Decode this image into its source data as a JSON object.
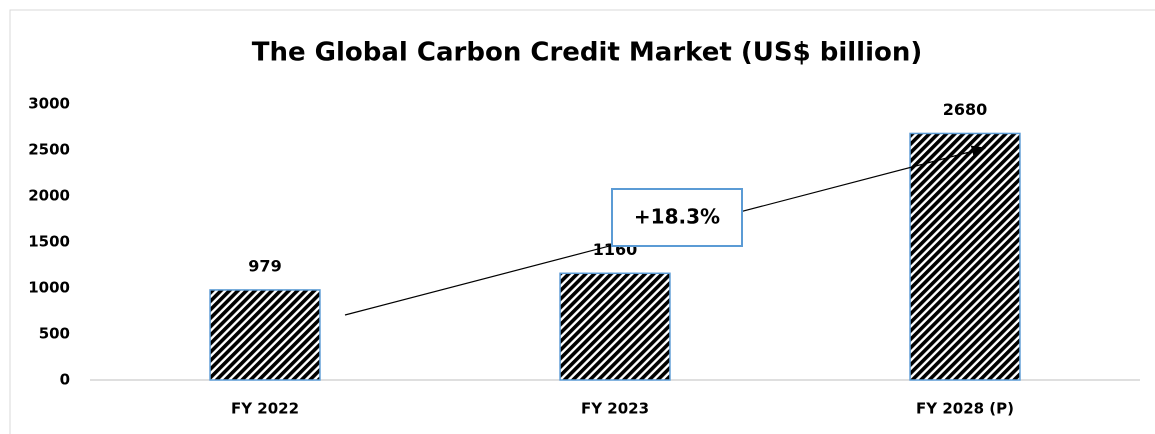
{
  "chart_data": {
    "type": "bar",
    "title": "The Global Carbon Credit Market (US$ billion)",
    "categories": [
      "FY 2022",
      "FY 2023",
      "FY 2028 (P)"
    ],
    "values": [
      979,
      1160,
      2680
    ],
    "color": "#000000",
    "edge_color": "#5b9bd5",
    "ylim": [
      0,
      3000
    ],
    "yticks": [
      0,
      500,
      1000,
      1500,
      2000,
      2500,
      3000
    ],
    "grid": false,
    "annotation": "+18.3%"
  }
}
